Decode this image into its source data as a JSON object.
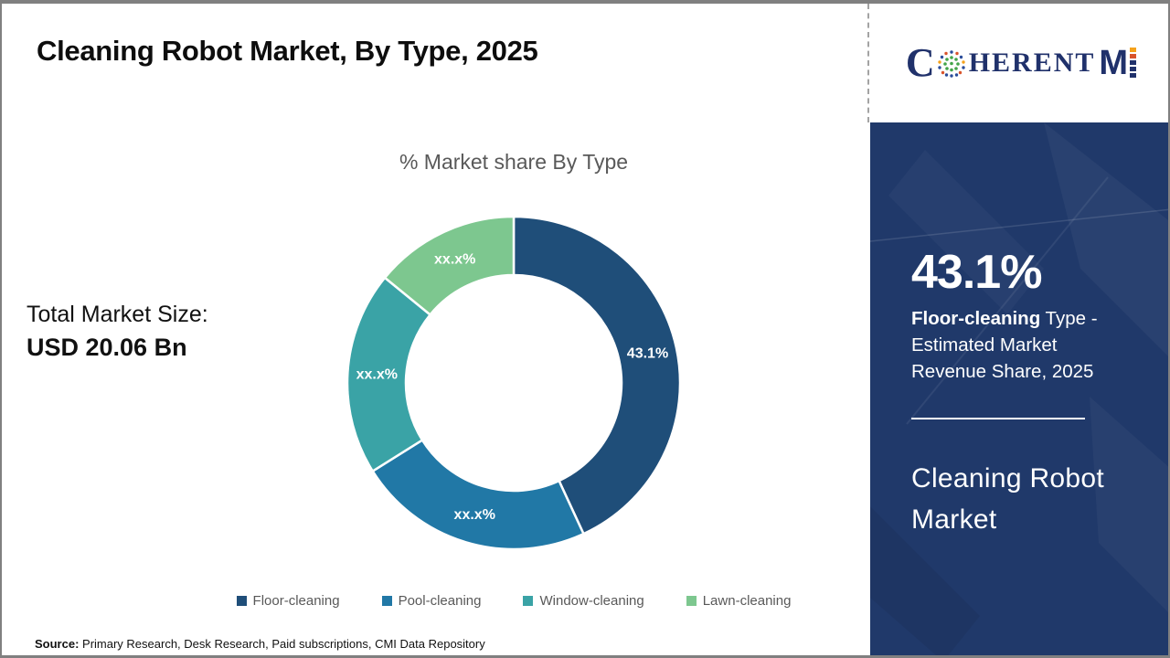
{
  "page": {
    "title": "Cleaning Robot Market, By Type, 2025",
    "source_label": "Source:",
    "source_text": " Primary Research, Desk Research, Paid subscriptions, CMI Data Repository"
  },
  "logo": {
    "part_c": "C",
    "part_herent": "HERENT",
    "part_m": "M",
    "globe_icon": "dotted-globe-icon",
    "colors": {
      "navy": "#20316b",
      "orange": "#f5a21b",
      "red": "#d9542b",
      "green": "#43a549",
      "blue": "#2b4d9b"
    }
  },
  "market_size": {
    "label": "Total Market Size:",
    "value": "USD 20.06 Bn"
  },
  "chart_data": {
    "type": "pie",
    "donut": true,
    "title": "% Market share By Type",
    "start_angle_deg": 0,
    "direction": "clockwise",
    "hole_radius_ratio": 0.65,
    "slices": [
      {
        "label": "Floor-cleaning",
        "value": 43.1,
        "display": "43.1%",
        "color": "#1f4e79"
      },
      {
        "label": "Pool-cleaning",
        "value": 23.0,
        "display": "xx.x%",
        "color": "#2178a6"
      },
      {
        "label": "Window-cleaning",
        "value": 19.8,
        "display": "xx.x%",
        "color": "#3aa3a6"
      },
      {
        "label": "Lawn-cleaning",
        "value": 14.1,
        "display": "xx.x%",
        "color": "#7dc78f"
      }
    ],
    "legend_position": "bottom"
  },
  "sidebar": {
    "background": "#20396a",
    "stat_value": "43.1%",
    "desc_line1_bold": "Floor-cleaning",
    "desc_line1_rest": " Type -",
    "desc_line2": "Estimated Market",
    "desc_line3": "Revenue Share, 2025",
    "title_line1": "Cleaning Robot",
    "title_line2": "Market"
  }
}
